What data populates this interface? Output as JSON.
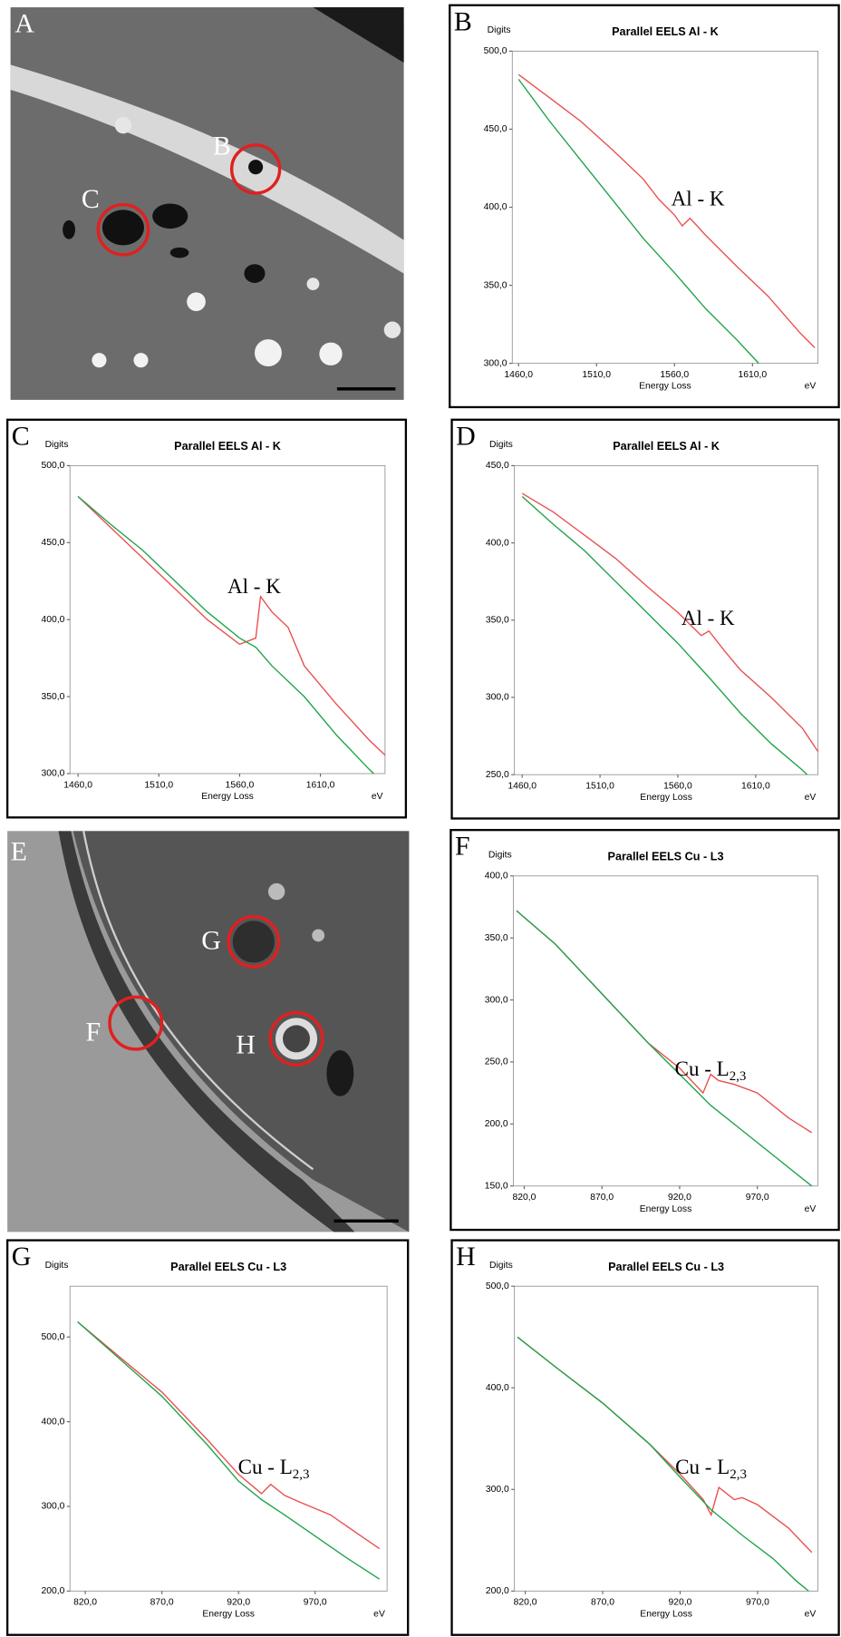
{
  "images": [
    {
      "label": "A",
      "markers": [
        "B",
        "C"
      ]
    },
    {
      "label": "E",
      "markers": [
        "F",
        "G",
        "H"
      ]
    }
  ],
  "chart_data": [
    {
      "type": "line",
      "panel": "B",
      "title": "Parallel EELS Al - K",
      "y_label": "Digits",
      "x_label": "Energy Loss",
      "x_unit": "eV",
      "annotation": {
        "text": "Al - K"
      },
      "xlim": [
        1456,
        1652
      ],
      "xticks": [
        {
          "value": 1460,
          "label": "1460,0"
        },
        {
          "value": 1510,
          "label": "1510,0"
        },
        {
          "value": 1560,
          "label": "1560,0"
        },
        {
          "value": 1610,
          "label": "1610,0"
        }
      ],
      "ylim": [
        300,
        500
      ],
      "yticks": [
        {
          "value": 300,
          "label": "300,0"
        },
        {
          "value": 350,
          "label": "350,0"
        },
        {
          "value": 400,
          "label": "400,0"
        },
        {
          "value": 450,
          "label": "450,0"
        },
        {
          "value": 500,
          "label": "500,0"
        }
      ],
      "series": [
        {
          "color": "#e8504f",
          "x": [
            1460,
            1480,
            1500,
            1520,
            1540,
            1550,
            1560,
            1565,
            1570,
            1580,
            1600,
            1620,
            1640,
            1650
          ],
          "values": [
            485,
            470,
            455,
            437,
            418,
            405,
            395,
            388,
            393,
            382,
            362,
            343,
            320,
            310
          ]
        },
        {
          "color": "#1fa34a",
          "x": [
            1460,
            1480,
            1500,
            1520,
            1540,
            1560,
            1580,
            1600,
            1614
          ],
          "values": [
            482,
            455,
            430,
            405,
            380,
            358,
            335,
            315,
            300
          ]
        }
      ]
    },
    {
      "type": "line",
      "panel": "C",
      "title": "Parallel EELS Al - K",
      "y_label": "Digits",
      "x_label": "Energy Loss",
      "x_unit": "eV",
      "annotation": {
        "text": "Al - K"
      },
      "xlim": [
        1455,
        1650
      ],
      "xticks": [
        {
          "value": 1460,
          "label": "1460,0"
        },
        {
          "value": 1510,
          "label": "1510,0"
        },
        {
          "value": 1560,
          "label": "1560,0"
        },
        {
          "value": 1610,
          "label": "1610,0"
        }
      ],
      "ylim": [
        300,
        500
      ],
      "yticks": [
        {
          "value": 300,
          "label": "300,0"
        },
        {
          "value": 350,
          "label": "350,0"
        },
        {
          "value": 400,
          "label": "400,0"
        },
        {
          "value": 450,
          "label": "450,0"
        },
        {
          "value": 500,
          "label": "500,0"
        }
      ],
      "series": [
        {
          "color": "#e8504f",
          "x": [
            1460,
            1480,
            1500,
            1520,
            1540,
            1560,
            1570,
            1573,
            1580,
            1590,
            1600,
            1620,
            1640,
            1650
          ],
          "values": [
            480,
            460,
            440,
            420,
            400,
            384,
            388,
            415,
            405,
            395,
            370,
            345,
            322,
            312
          ]
        },
        {
          "color": "#1fa34a",
          "x": [
            1460,
            1480,
            1500,
            1520,
            1540,
            1560,
            1570,
            1580,
            1600,
            1620,
            1640,
            1643
          ],
          "values": [
            480,
            462,
            445,
            425,
            405,
            388,
            382,
            370,
            350,
            325,
            303,
            300
          ]
        }
      ]
    },
    {
      "type": "line",
      "panel": "D",
      "title": "Parallel EELS Al - K",
      "y_label": "Digits",
      "x_label": "Energy Loss",
      "x_unit": "eV",
      "annotation": {
        "text": "Al - K"
      },
      "xlim": [
        1455,
        1650
      ],
      "xticks": [
        {
          "value": 1460,
          "label": "1460,0"
        },
        {
          "value": 1510,
          "label": "1510,0"
        },
        {
          "value": 1560,
          "label": "1560,0"
        },
        {
          "value": 1610,
          "label": "1610,0"
        }
      ],
      "ylim": [
        250,
        450
      ],
      "yticks": [
        {
          "value": 250,
          "label": "250,0"
        },
        {
          "value": 300,
          "label": "300,0"
        },
        {
          "value": 350,
          "label": "350,0"
        },
        {
          "value": 400,
          "label": "400,0"
        },
        {
          "value": 450,
          "label": "450,0"
        }
      ],
      "series": [
        {
          "color": "#e8504f",
          "x": [
            1460,
            1480,
            1500,
            1520,
            1540,
            1560,
            1570,
            1575,
            1580,
            1590,
            1600,
            1620,
            1640,
            1650
          ],
          "values": [
            432,
            420,
            405,
            390,
            372,
            355,
            345,
            340,
            343,
            330,
            318,
            300,
            280,
            265
          ]
        },
        {
          "color": "#1fa34a",
          "x": [
            1460,
            1480,
            1500,
            1520,
            1540,
            1560,
            1580,
            1600,
            1620,
            1640,
            1643
          ],
          "values": [
            430,
            412,
            395,
            375,
            355,
            335,
            313,
            290,
            270,
            253,
            250
          ]
        }
      ]
    },
    {
      "type": "line",
      "panel": "F",
      "title": "Parallel EELS Cu - L3",
      "y_label": "Digits",
      "x_label": "Energy Loss",
      "x_unit": "eV",
      "annotation": {
        "text": "Cu - L",
        "subscript": "2,3"
      },
      "xlim": [
        813,
        1009
      ],
      "xticks": [
        {
          "value": 820,
          "label": "820,0"
        },
        {
          "value": 870,
          "label": "870,0"
        },
        {
          "value": 920,
          "label": "920,0"
        },
        {
          "value": 970,
          "label": "970,0"
        }
      ],
      "ylim": [
        150,
        400
      ],
      "yticks": [
        {
          "value": 150,
          "label": "150,0"
        },
        {
          "value": 200,
          "label": "200,0"
        },
        {
          "value": 250,
          "label": "250,0"
        },
        {
          "value": 300,
          "label": "300,0"
        },
        {
          "value": 350,
          "label": "350,0"
        },
        {
          "value": 400,
          "label": "400,0"
        }
      ],
      "series": [
        {
          "color": "#e8504f",
          "x": [
            815,
            840,
            870,
            900,
            920,
            935,
            940,
            945,
            955,
            970,
            990,
            1005
          ],
          "values": [
            372,
            345,
            305,
            265,
            245,
            225,
            240,
            235,
            232,
            225,
            205,
            193
          ]
        },
        {
          "color": "#1fa34a",
          "x": [
            815,
            840,
            870,
            900,
            920,
            940,
            960,
            980,
            1000,
            1005
          ],
          "values": [
            372,
            345,
            305,
            265,
            240,
            215,
            195,
            175,
            155,
            150
          ]
        }
      ]
    },
    {
      "type": "line",
      "panel": "G",
      "title": "Parallel EELS Cu - L3",
      "y_label": "Digits",
      "x_label": "Energy Loss",
      "x_unit": "eV",
      "annotation": {
        "text": "Cu - L",
        "subscript": "2,3"
      },
      "xlim": [
        810,
        1017
      ],
      "xticks": [
        {
          "value": 820,
          "label": "820,0"
        },
        {
          "value": 870,
          "label": "870,0"
        },
        {
          "value": 920,
          "label": "920,0"
        },
        {
          "value": 970,
          "label": "970,0"
        }
      ],
      "ylim": [
        200,
        560
      ],
      "yticks": [
        {
          "value": 200,
          "label": "200,0"
        },
        {
          "value": 300,
          "label": "300,0"
        },
        {
          "value": 400,
          "label": "400,0"
        },
        {
          "value": 500,
          "label": "500,0"
        }
      ],
      "series": [
        {
          "color": "#e8504f",
          "x": [
            815,
            840,
            870,
            900,
            920,
            935,
            941,
            950,
            960,
            980,
            1000,
            1012
          ],
          "values": [
            518,
            480,
            435,
            378,
            338,
            315,
            326,
            313,
            305,
            290,
            265,
            250
          ]
        },
        {
          "color": "#1fa34a",
          "x": [
            815,
            840,
            870,
            900,
            920,
            935,
            950,
            970,
            990,
            1012
          ],
          "values": [
            518,
            478,
            430,
            372,
            330,
            308,
            290,
            265,
            240,
            214
          ]
        }
      ]
    },
    {
      "type": "line",
      "panel": "H",
      "title": "Parallel EELS Cu - L3",
      "y_label": "Digits",
      "x_label": "Energy Loss",
      "x_unit": "eV",
      "annotation": {
        "text": "Cu - L",
        "subscript": "2,3"
      },
      "xlim": [
        813,
        1009
      ],
      "xticks": [
        {
          "value": 820,
          "label": "820,0"
        },
        {
          "value": 870,
          "label": "870,0"
        },
        {
          "value": 920,
          "label": "920,0"
        },
        {
          "value": 970,
          "label": "970,0"
        }
      ],
      "ylim": [
        200,
        500
      ],
      "yticks": [
        {
          "value": 200,
          "label": "200,0"
        },
        {
          "value": 300,
          "label": "300,0"
        },
        {
          "value": 400,
          "label": "400,0"
        },
        {
          "value": 500,
          "label": "500,0"
        }
      ],
      "series": [
        {
          "color": "#e8504f",
          "x": [
            815,
            840,
            870,
            900,
            920,
            935,
            940,
            945,
            955,
            960,
            970,
            990,
            1005
          ],
          "values": [
            450,
            420,
            385,
            345,
            315,
            290,
            275,
            302,
            290,
            292,
            285,
            262,
            238
          ]
        },
        {
          "color": "#1fa34a",
          "x": [
            815,
            840,
            870,
            900,
            920,
            940,
            960,
            980,
            995,
            1003
          ],
          "values": [
            450,
            420,
            385,
            345,
            312,
            280,
            255,
            232,
            210,
            200
          ]
        }
      ]
    }
  ]
}
